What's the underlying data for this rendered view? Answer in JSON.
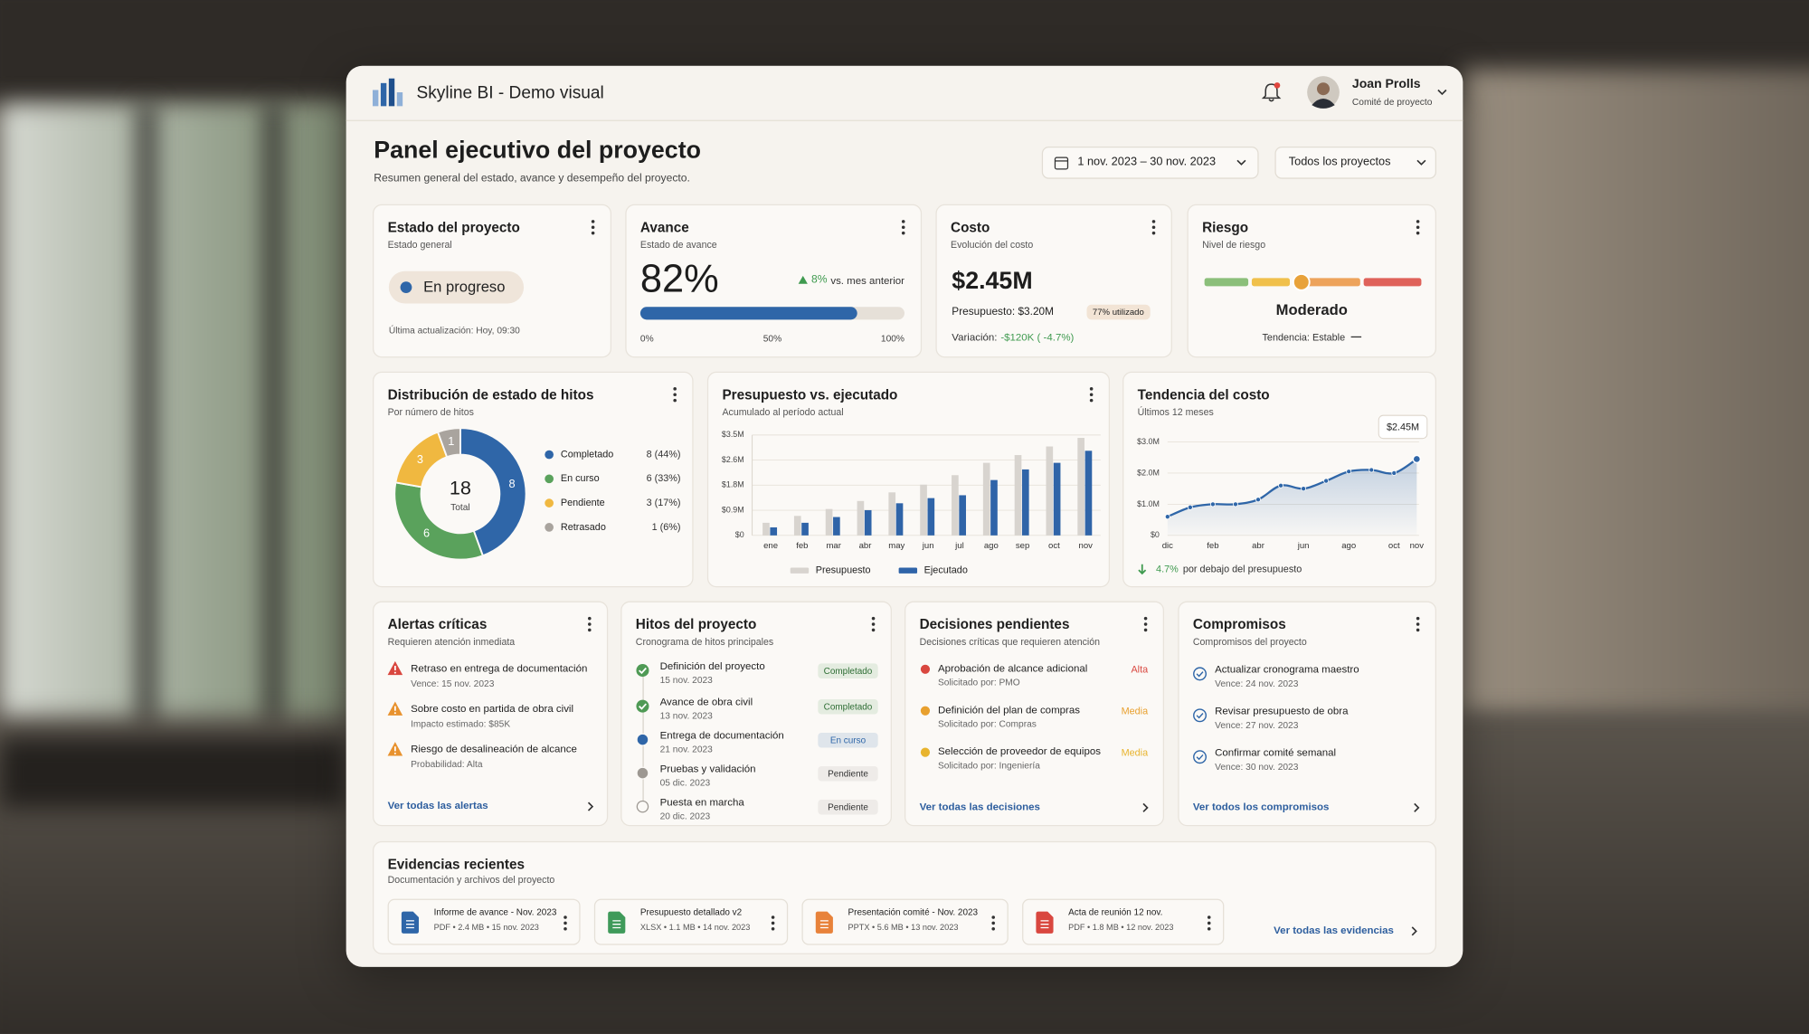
{
  "header": {
    "app_title": "Skyline BI - Demo visual",
    "user_name": "Joan Prolls",
    "user_role": "Comité de proyecto"
  },
  "page": {
    "title": "Panel ejecutivo del proyecto",
    "subtitle": "Resumen general del estado, avance y desempeño del proyecto.",
    "date_range": "1 nov. 2023 – 30 nov. 2023",
    "project_filter": "Todos los proyectos"
  },
  "kpis": {
    "status": {
      "title": "Estado del proyecto",
      "subtitle": "Estado general",
      "value": "En progreso",
      "color": "#2f66a8",
      "updated": "Última actualización: Hoy, 09:30"
    },
    "progress": {
      "title": "Avance",
      "subtitle": "Estado de avance",
      "value": {
        "value": 82,
        "label": "82%"
      },
      "change": "8%",
      "change_label": "vs. mes anterior",
      "color": "#2f66a8",
      "scale": [
        {
          "value": 0,
          "label": "0%"
        },
        {
          "value": 50,
          "label": "50%"
        },
        {
          "value": 100,
          "label": "100%"
        }
      ]
    },
    "cost": {
      "title": "Costo",
      "subtitle": "Evolución del costo",
      "value": "$2.45M",
      "budget": "Presupuesto: $3.20M",
      "used": "77% utilizado",
      "variance_label": "Variación:",
      "variance": "-$120K ( -4.7%)"
    },
    "risk": {
      "title": "Riesgo",
      "subtitle": "Nivel de riesgo",
      "level": "Moderado",
      "trend": "Tendencia: Estable"
    }
  },
  "chart_data": [
    {
      "type": "donut",
      "title": "Distribución de estado de hitos",
      "subtitle": "Por número de hitos",
      "categories": [
        "Completado",
        "En curso",
        "Pendiente",
        "Retrasado"
      ],
      "values": [
        8,
        6,
        3,
        1
      ],
      "value_labels": [
        "8 (44%)",
        "6 (33%)",
        "3 (17%)",
        "1 (6%)"
      ],
      "colors": [
        "#2f66a8",
        "#5aa25c",
        "#f0b840",
        "#a9a49e"
      ],
      "total": 18,
      "total_label": "Total"
    },
    {
      "type": "bar",
      "title": "Presupuesto vs. ejecutado",
      "subtitle": "Acumulado al período actual",
      "categories": [
        "ene",
        "feb",
        "mar",
        "abr",
        "may",
        "jun",
        "jul",
        "ago",
        "sep",
        "oct",
        "nov"
      ],
      "series": [
        {
          "name": "Presupuesto",
          "color": "#d8d4cf",
          "values": [
            0.44,
            0.68,
            0.92,
            1.2,
            1.5,
            1.77,
            2.1,
            2.53,
            2.8,
            3.1,
            3.4
          ]
        },
        {
          "name": "Ejecutado",
          "color": "#2f64a8",
          "values": [
            0.28,
            0.44,
            0.64,
            0.88,
            1.12,
            1.3,
            1.4,
            1.93,
            2.3,
            2.53,
            2.95
          ]
        }
      ],
      "ylim": [
        0,
        3.5
      ],
      "yticks": [
        {
          "value": 0,
          "label": "$0"
        },
        {
          "value": 0.875,
          "label": "$0.9M"
        },
        {
          "value": 1.75,
          "label": "$1.8M"
        },
        {
          "value": 2.625,
          "label": "$2.6M"
        },
        {
          "value": 3.5,
          "label": "$3.5M"
        }
      ],
      "grid": true
    },
    {
      "type": "line",
      "title": "Tendencia del costo",
      "subtitle": "Últimos 12 meses",
      "categories": [
        "dic",
        null,
        "feb",
        null,
        "abr",
        null,
        "jun",
        null,
        "ago",
        null,
        "oct",
        "nov"
      ],
      "values": [
        0.6,
        0.9,
        1.0,
        1.0,
        1.15,
        1.6,
        1.5,
        1.75,
        2.05,
        2.1,
        2.0,
        2.45
      ],
      "color": "#2f66a8",
      "ylim": [
        0,
        3
      ],
      "yticks": [
        {
          "value": 0,
          "label": "$0"
        },
        {
          "value": 1,
          "label": "$1.0M"
        },
        {
          "value": 2,
          "label": "$2.0M"
        },
        {
          "value": 3,
          "label": "$3.0M"
        }
      ],
      "grid": true,
      "annotation": "$2.45M",
      "footer_value": "4.7%",
      "footer_text": "por debajo del presupuesto"
    }
  ],
  "alerts": {
    "title": "Alertas críticas",
    "subtitle": "Requieren atención inmediata",
    "items": [
      {
        "title": "Retraso en entrega de documentación",
        "detail": "Vence: 15 nov. 2023",
        "color": "#d9473f"
      },
      {
        "title": "Sobre costo en partida de obra civil",
        "detail": "Impacto estimado: $85K",
        "color": "#e8922e"
      },
      {
        "title": "Riesgo de desalineación de alcance",
        "detail": "Probabilidad: Alta",
        "color": "#e8922e"
      }
    ],
    "link": "Ver todas las alertas"
  },
  "milestones": {
    "title": "Hitos del proyecto",
    "subtitle": "Cronograma de hitos principales",
    "items": [
      {
        "name": "Definición del proyecto",
        "date": "15 nov. 2023",
        "status": "Completado",
        "color": "#4f9a55",
        "icon": "check"
      },
      {
        "name": "Avance de obra civil",
        "date": "13 nov. 2023",
        "status": "Completado",
        "color": "#4f9a55",
        "icon": "check"
      },
      {
        "name": "Entrega de documentación",
        "date": "21 nov. 2023",
        "status": "En curso",
        "color": "#2f66a8",
        "icon": "dot"
      },
      {
        "name": "Pruebas y validación",
        "date": "05 dic. 2023",
        "status": "Pendiente",
        "color": "#9d9892",
        "icon": "dot"
      },
      {
        "name": "Puesta en marcha",
        "date": "20 dic. 2023",
        "status": "Pendiente",
        "color": "#9d9892",
        "icon": "open"
      }
    ]
  },
  "decisions": {
    "title": "Decisiones pendientes",
    "subtitle": "Decisiones críticas que requieren atención",
    "items": [
      {
        "title": "Aprobación de alcance adicional",
        "requester": "Solicitado por: PMO",
        "priority": "Alta",
        "color": "#d9473f"
      },
      {
        "title": "Definición del plan de compras",
        "requester": "Solicitado por: Compras",
        "priority": "Media",
        "color": "#e8a02e"
      },
      {
        "title": "Selección de proveedor de equipos",
        "requester": "Solicitado por: Ingeniería",
        "priority": "Media",
        "color": "#e8b42e"
      }
    ],
    "link": "Ver todas las decisiones"
  },
  "commitments": {
    "title": "Compromisos",
    "subtitle": "Compromisos del proyecto",
    "items": [
      {
        "title": "Actualizar cronograma maestro",
        "due": "Vence: 24 nov. 2023"
      },
      {
        "title": "Revisar presupuesto de obra",
        "due": "Vence: 27 nov. 2023"
      },
      {
        "title": "Confirmar comité semanal",
        "due": "Vence: 30 nov. 2023"
      }
    ],
    "link": "Ver todos los compromisos"
  },
  "evidence": {
    "title": "Evidencias recientes",
    "subtitle": "Documentación y archivos del proyecto",
    "files": [
      {
        "name": "Informe de avance - Nov. 2023",
        "meta": "PDF • 2.4 MB • 15 nov. 2023",
        "color": "#2f66a8"
      },
      {
        "name": "Presupuesto detallado v2",
        "meta": "XLSX • 1.1 MB • 14 nov. 2023",
        "color": "#3f9a5a"
      },
      {
        "name": "Presentación comité - Nov. 2023",
        "meta": "PPTX • 5.6 MB • 13 nov. 2023",
        "color": "#e8823a"
      },
      {
        "name": "Acta de reunión 12 nov.",
        "meta": "PDF • 1.8 MB • 12 nov. 2023",
        "color": "#d9473f"
      }
    ],
    "link": "Ver todas las evidencias"
  }
}
